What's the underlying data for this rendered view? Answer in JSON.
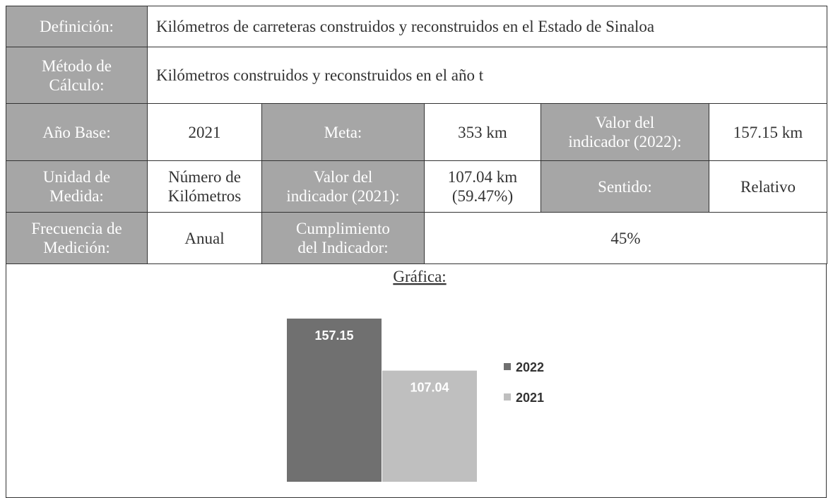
{
  "table": {
    "rows": [
      [
        "Definición:",
        "Kilómetros de carreteras construidos y reconstruidos en el Estado de Sinaloa"
      ],
      [
        "Método de\nCálculo:",
        "Kilómetros construidos y reconstruidos en el año t"
      ],
      [
        "Año Base:",
        "2021",
        "Meta:",
        "353 km",
        "Valor del\nindicador (2022):",
        "157.15 km"
      ],
      [
        "Unidad de\nMedida:",
        "Número de\nKilómetros",
        "Valor del\nindicador (2021):",
        "107.04 km\n(59.47%)",
        "Sentido:",
        "Relativo"
      ],
      [
        "Frecuencia de\nMedición:",
        "Anual",
        "Cumplimiento\ndel Indicador:",
        "45%"
      ]
    ]
  },
  "chart_data": {
    "type": "bar",
    "title": "Gráfica:",
    "categories": [
      "2022",
      "2021"
    ],
    "values": [
      157.15,
      107.04
    ],
    "colors": [
      "#707070",
      "#bfbfbf"
    ]
  }
}
